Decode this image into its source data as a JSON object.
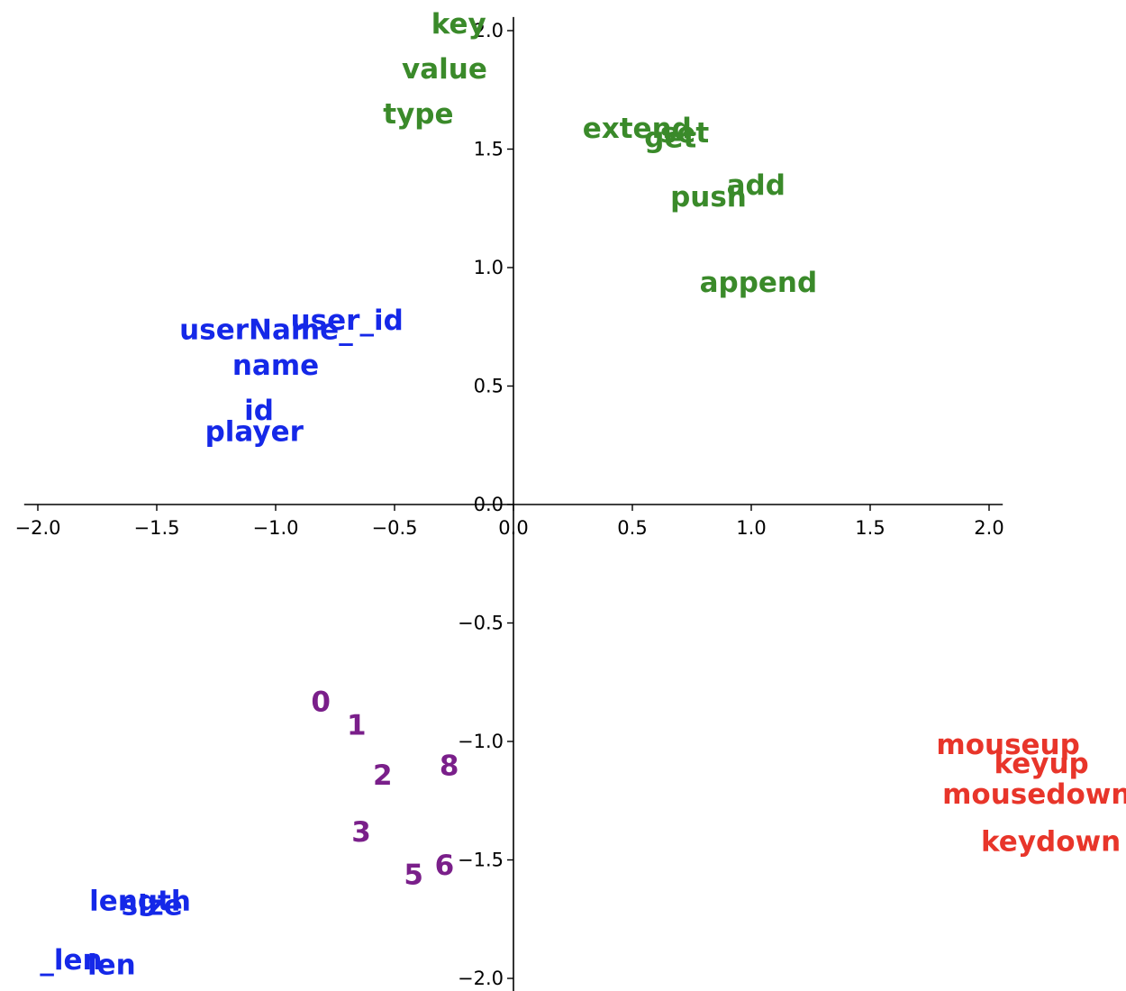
{
  "chart_data": {
    "type": "scatter",
    "title": "",
    "xlabel": "",
    "ylabel": "",
    "xlim": [
      -2.05,
      2.05
    ],
    "ylim": [
      -2.05,
      2.05
    ],
    "xticks": [
      -2.0,
      -1.5,
      -1.0,
      -0.5,
      0.0,
      0.5,
      1.0,
      1.5,
      2.0
    ],
    "yticks": [
      -2.0,
      -1.5,
      -1.0,
      -0.5,
      0.0,
      0.5,
      1.0,
      1.5,
      2.0
    ],
    "x_tick_labels": [
      "−2.0",
      "−1.5",
      "−1.0",
      "−0.5",
      "0.0",
      "0.5",
      "1.0",
      "1.5",
      "2.0"
    ],
    "y_tick_labels": [
      "−2.0",
      "−1.5",
      "−1.0",
      "−0.5",
      "0.0",
      "0.5",
      "1.0",
      "1.5",
      "2.0"
    ],
    "grid": false,
    "spines": "centered",
    "series": [
      {
        "color": "#3a8a2a",
        "points": [
          {
            "label": "key",
            "x": -0.23,
            "y": 2.02
          },
          {
            "label": "value",
            "x": -0.29,
            "y": 1.83
          },
          {
            "label": "type",
            "x": -0.4,
            "y": 1.64
          },
          {
            "label": "extend",
            "x": 0.52,
            "y": 1.58
          },
          {
            "label": "get",
            "x": 0.66,
            "y": 1.54
          },
          {
            "label": "set",
            "x": 0.72,
            "y": 1.56
          },
          {
            "label": "add",
            "x": 1.02,
            "y": 1.34
          },
          {
            "label": "push",
            "x": 0.82,
            "y": 1.29
          },
          {
            "label": "append",
            "x": 1.03,
            "y": 0.93
          }
        ]
      },
      {
        "color": "#1528e8",
        "points": [
          {
            "label": "user_id",
            "x": -0.7,
            "y": 0.77
          },
          {
            "label": "userName_",
            "x": -1.04,
            "y": 0.73
          },
          {
            "label": "name",
            "x": -1.0,
            "y": 0.58
          },
          {
            "label": "id",
            "x": -1.07,
            "y": 0.39
          },
          {
            "label": "player",
            "x": -1.09,
            "y": 0.3
          },
          {
            "label": "length",
            "x": -1.57,
            "y": -1.68
          },
          {
            "label": "size",
            "x": -1.52,
            "y": -1.7
          },
          {
            "label": "_len",
            "x": -1.86,
            "y": -1.93
          },
          {
            "label": "len",
            "x": -1.69,
            "y": -1.95
          }
        ]
      },
      {
        "color": "#7a1f8a",
        "points": [
          {
            "label": "0",
            "x": -0.81,
            "y": -0.84
          },
          {
            "label": "1",
            "x": -0.66,
            "y": -0.94
          },
          {
            "label": "2",
            "x": -0.55,
            "y": -1.15
          },
          {
            "label": "8",
            "x": -0.27,
            "y": -1.11
          },
          {
            "label": "3",
            "x": -0.64,
            "y": -1.39
          },
          {
            "label": "5",
            "x": -0.42,
            "y": -1.57
          },
          {
            "label": "6",
            "x": -0.29,
            "y": -1.53
          }
        ]
      },
      {
        "color": "#e8352a",
        "points": [
          {
            "label": "mouseup",
            "x": 2.08,
            "y": -1.02
          },
          {
            "label": "keyup",
            "x": 2.22,
            "y": -1.1
          },
          {
            "label": "mousedown",
            "x": 2.2,
            "y": -1.23
          },
          {
            "label": "keydown",
            "x": 2.26,
            "y": -1.43
          }
        ]
      }
    ]
  }
}
